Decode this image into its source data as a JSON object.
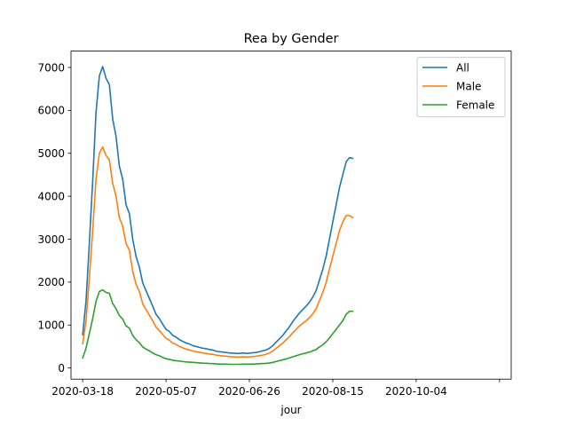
{
  "chart_data": {
    "type": "line",
    "title": "Rea by Gender",
    "xlabel": "jour",
    "ylabel": "",
    "x_start": "2020-03-18",
    "x_step_days": 2,
    "x_ticks": [
      "2020-03-18",
      "2020-05-07",
      "2020-06-26",
      "2020-08-15",
      "2020-10-04",
      ""
    ],
    "y_ticks": [
      0,
      1000,
      2000,
      3000,
      4000,
      5000,
      6000,
      7000
    ],
    "ylim": [
      -260,
      7380
    ],
    "xlim": [
      "2020-03-11",
      "2020-11-30"
    ],
    "legend_position": "top-right",
    "grid": false,
    "series": [
      {
        "name": "All",
        "color": "#1f77b4",
        "values": [
          770,
          1560,
          2900,
          4350,
          5950,
          6800,
          7020,
          6750,
          6600,
          5800,
          5400,
          4700,
          4400,
          3800,
          3600,
          3000,
          2600,
          2350,
          1980,
          1800,
          1620,
          1440,
          1250,
          1150,
          1020,
          900,
          850,
          760,
          720,
          660,
          620,
          580,
          560,
          520,
          500,
          480,
          460,
          450,
          430,
          420,
          390,
          380,
          370,
          360,
          350,
          345,
          340,
          340,
          350,
          340,
          345,
          355,
          360,
          380,
          400,
          420,
          460,
          520,
          600,
          680,
          760,
          860,
          960,
          1080,
          1180,
          1280,
          1360,
          1440,
          1530,
          1650,
          1800,
          2050,
          2300,
          2600,
          3000,
          3400,
          3800,
          4200,
          4500,
          4800,
          4900,
          4880
        ]
      },
      {
        "name": "Male",
        "color": "#ff7f0e",
        "values": [
          560,
          1100,
          2100,
          3200,
          4400,
          5000,
          5150,
          4950,
          4850,
          4300,
          4000,
          3500,
          3300,
          2900,
          2750,
          2250,
          1950,
          1780,
          1500,
          1360,
          1230,
          1100,
          950,
          870,
          780,
          690,
          650,
          580,
          550,
          500,
          470,
          440,
          420,
          395,
          380,
          365,
          350,
          340,
          325,
          320,
          300,
          290,
          280,
          275,
          265,
          260,
          255,
          255,
          262,
          255,
          260,
          268,
          272,
          288,
          300,
          320,
          350,
          395,
          455,
          520,
          580,
          660,
          730,
          820,
          900,
          980,
          1040,
          1100,
          1170,
          1260,
          1380,
          1570,
          1760,
          1990,
          2300,
          2600,
          2900,
          3200,
          3400,
          3550,
          3550,
          3500
        ]
      },
      {
        "name": "Female",
        "color": "#2ca02c",
        "values": [
          230,
          460,
          800,
          1150,
          1550,
          1780,
          1820,
          1760,
          1740,
          1500,
          1380,
          1220,
          1140,
          980,
          930,
          760,
          660,
          590,
          490,
          440,
          400,
          350,
          310,
          285,
          245,
          215,
          200,
          180,
          170,
          160,
          150,
          140,
          135,
          130,
          125,
          118,
          112,
          110,
          105,
          102,
          95,
          92,
          90,
          88,
          85,
          85,
          85,
          86,
          90,
          88,
          90,
          92,
          95,
          100,
          105,
          108,
          115,
          130,
          150,
          170,
          190,
          210,
          235,
          260,
          285,
          310,
          330,
          350,
          370,
          400,
          430,
          490,
          540,
          610,
          700,
          800,
          900,
          1000,
          1100,
          1250,
          1320,
          1320
        ]
      }
    ]
  }
}
